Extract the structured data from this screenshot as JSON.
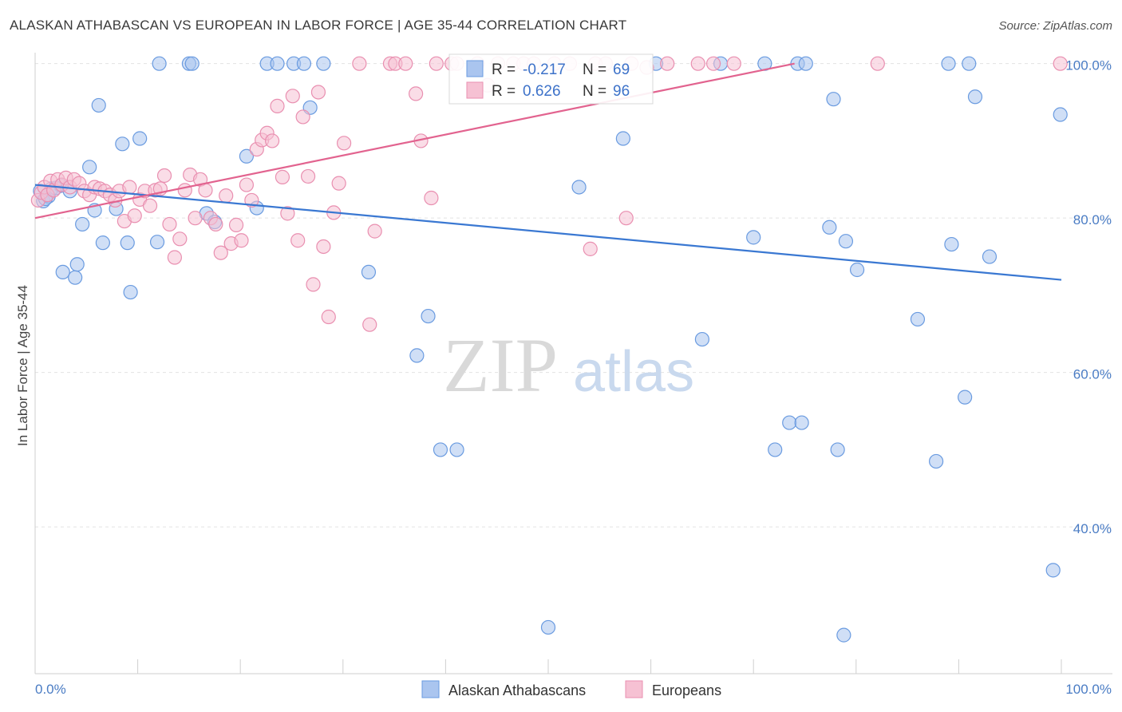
{
  "title": "ALASKAN ATHABASCAN VS EUROPEAN IN LABOR FORCE | AGE 35-44 CORRELATION CHART",
  "source": "Source: ZipAtlas.com",
  "watermark": {
    "part1": "ZIP",
    "part2": "atlas"
  },
  "chart_data": {
    "type": "scatter",
    "ylabel": "In Labor Force | Age 35-44",
    "xlim": [
      0,
      100
    ],
    "ylim": [
      21,
      101
    ],
    "y_ticks": [
      {
        "value": 100,
        "label": "100.0%"
      },
      {
        "value": 80,
        "label": "80.0%"
      },
      {
        "value": 60,
        "label": "60.0%"
      },
      {
        "value": 40,
        "label": "40.0%"
      }
    ],
    "x_tick_labels": {
      "left": "0.0%",
      "right": "100.0%"
    },
    "grid": true,
    "legend": {
      "placement": "top-center",
      "r_label": "R =",
      "n_label": "N =",
      "entries": [
        {
          "series": "Alaskan Athabascans",
          "r": "-0.217",
          "n": "69"
        },
        {
          "series": "Europeans",
          "r": "0.626",
          "n": "96"
        }
      ]
    },
    "series": [
      {
        "name": "Alaskan Athabascans",
        "color": "#6a9be0",
        "fill": "#aac5ef",
        "trend_line": {
          "x": [
            0,
            100
          ],
          "y": [
            84.3,
            72.0
          ],
          "color": "#3a78d2"
        },
        "points": [
          [
            0.5,
            83.5
          ],
          [
            0.8,
            82.2
          ],
          [
            1.3,
            82.8
          ],
          [
            1.6,
            83.8
          ],
          [
            2.5,
            84.2
          ],
          [
            2.7,
            73.0
          ],
          [
            3.4,
            83.5
          ],
          [
            3.9,
            72.3
          ],
          [
            4.1,
            74.0
          ],
          [
            4.6,
            79.2
          ],
          [
            5.3,
            86.6
          ],
          [
            5.8,
            81.0
          ],
          [
            6.2,
            94.6
          ],
          [
            6.6,
            76.8
          ],
          [
            7.9,
            81.2
          ],
          [
            8.5,
            89.6
          ],
          [
            9.0,
            76.8
          ],
          [
            9.3,
            70.4
          ],
          [
            10.2,
            90.3
          ],
          [
            11.9,
            76.9
          ],
          [
            12.1,
            100
          ],
          [
            15.0,
            100
          ],
          [
            15.3,
            100
          ],
          [
            16.7,
            80.6
          ],
          [
            17.5,
            79.5
          ],
          [
            20.6,
            88.0
          ],
          [
            21.6,
            81.3
          ],
          [
            22.6,
            100
          ],
          [
            23.6,
            100
          ],
          [
            25.2,
            100
          ],
          [
            26.2,
            100
          ],
          [
            26.8,
            94.3
          ],
          [
            28.1,
            100
          ],
          [
            32.5,
            73.0
          ],
          [
            37.2,
            62.2
          ],
          [
            38.3,
            67.3
          ],
          [
            39.5,
            50.0
          ],
          [
            41.1,
            50.0
          ],
          [
            50.0,
            27.0
          ],
          [
            53.0,
            84.0
          ],
          [
            57.3,
            90.3
          ],
          [
            60.5,
            100
          ],
          [
            65.0,
            64.3
          ],
          [
            66.8,
            100
          ],
          [
            70.0,
            77.5
          ],
          [
            71.1,
            100
          ],
          [
            72.1,
            50.0
          ],
          [
            73.5,
            53.5
          ],
          [
            74.3,
            100
          ],
          [
            74.7,
            53.5
          ],
          [
            75.1,
            100
          ],
          [
            77.4,
            78.8
          ],
          [
            77.8,
            95.4
          ],
          [
            78.2,
            50.0
          ],
          [
            78.8,
            26.0
          ],
          [
            79.0,
            77.0
          ],
          [
            80.1,
            73.3
          ],
          [
            86.0,
            66.9
          ],
          [
            87.8,
            48.5
          ],
          [
            89.0,
            100
          ],
          [
            89.3,
            76.6
          ],
          [
            90.6,
            56.8
          ],
          [
            91.0,
            100
          ],
          [
            91.6,
            95.7
          ],
          [
            93.0,
            75.0
          ],
          [
            99.2,
            34.4
          ],
          [
            99.9,
            93.4
          ],
          [
            1.0,
            82.5
          ],
          [
            2.0,
            83.9
          ]
        ]
      },
      {
        "name": "Europeans",
        "color": "#e98fb0",
        "fill": "#f6c1d3",
        "trend_line": {
          "x": [
            0,
            74.0
          ],
          "y": [
            80.0,
            100.0
          ],
          "color": "#e2638f"
        },
        "points": [
          [
            0.3,
            82.3
          ],
          [
            0.6,
            83.3
          ],
          [
            0.9,
            84.0
          ],
          [
            1.2,
            83.0
          ],
          [
            1.5,
            84.8
          ],
          [
            1.8,
            83.6
          ],
          [
            2.2,
            85.0
          ],
          [
            2.6,
            84.3
          ],
          [
            3.0,
            85.2
          ],
          [
            3.4,
            84.0
          ],
          [
            3.8,
            85.0
          ],
          [
            4.3,
            84.5
          ],
          [
            4.8,
            83.5
          ],
          [
            5.3,
            83.0
          ],
          [
            5.8,
            84.0
          ],
          [
            6.3,
            83.8
          ],
          [
            6.8,
            83.5
          ],
          [
            7.3,
            83.0
          ],
          [
            7.8,
            82.3
          ],
          [
            8.2,
            83.5
          ],
          [
            8.7,
            79.6
          ],
          [
            9.2,
            84.0
          ],
          [
            9.7,
            80.3
          ],
          [
            10.2,
            82.4
          ],
          [
            10.7,
            83.5
          ],
          [
            11.2,
            81.6
          ],
          [
            11.7,
            83.6
          ],
          [
            12.2,
            83.8
          ],
          [
            12.6,
            85.5
          ],
          [
            13.1,
            79.2
          ],
          [
            13.6,
            74.9
          ],
          [
            14.1,
            77.3
          ],
          [
            14.6,
            83.6
          ],
          [
            15.1,
            85.6
          ],
          [
            15.6,
            80.0
          ],
          [
            16.1,
            85.0
          ],
          [
            16.6,
            83.6
          ],
          [
            17.1,
            80.0
          ],
          [
            17.6,
            79.2
          ],
          [
            18.1,
            75.5
          ],
          [
            18.6,
            82.9
          ],
          [
            19.1,
            76.7
          ],
          [
            19.6,
            79.1
          ],
          [
            20.1,
            77.1
          ],
          [
            20.6,
            84.3
          ],
          [
            21.1,
            82.3
          ],
          [
            21.6,
            88.9
          ],
          [
            22.1,
            90.1
          ],
          [
            22.6,
            91.0
          ],
          [
            23.1,
            90.0
          ],
          [
            23.6,
            94.5
          ],
          [
            24.1,
            85.3
          ],
          [
            24.6,
            80.6
          ],
          [
            25.1,
            95.8
          ],
          [
            25.6,
            77.1
          ],
          [
            26.1,
            93.1
          ],
          [
            26.6,
            85.4
          ],
          [
            27.1,
            71.4
          ],
          [
            27.6,
            96.3
          ],
          [
            28.1,
            76.3
          ],
          [
            28.6,
            67.2
          ],
          [
            29.1,
            80.7
          ],
          [
            29.6,
            84.5
          ],
          [
            30.1,
            89.7
          ],
          [
            31.6,
            100
          ],
          [
            32.6,
            66.2
          ],
          [
            33.1,
            78.3
          ],
          [
            34.6,
            100
          ],
          [
            35.1,
            100
          ],
          [
            36.1,
            100
          ],
          [
            37.1,
            96.1
          ],
          [
            37.6,
            90.0
          ],
          [
            38.6,
            82.6
          ],
          [
            39.1,
            100
          ],
          [
            40.6,
            100
          ],
          [
            41.1,
            100
          ],
          [
            43.1,
            100
          ],
          [
            44.1,
            97.2
          ],
          [
            45.1,
            100
          ],
          [
            46.6,
            100
          ],
          [
            47.6,
            100
          ],
          [
            48.6,
            100
          ],
          [
            50.6,
            100
          ],
          [
            52.1,
            100
          ],
          [
            54.1,
            76.0
          ],
          [
            54.6,
            100
          ],
          [
            55.6,
            100
          ],
          [
            57.6,
            80.0
          ],
          [
            58.1,
            100
          ],
          [
            59.6,
            99.5
          ],
          [
            61.6,
            100
          ],
          [
            64.6,
            100
          ],
          [
            66.1,
            100
          ],
          [
            68.1,
            100
          ],
          [
            82.1,
            100
          ],
          [
            99.9,
            100
          ]
        ]
      }
    ]
  }
}
